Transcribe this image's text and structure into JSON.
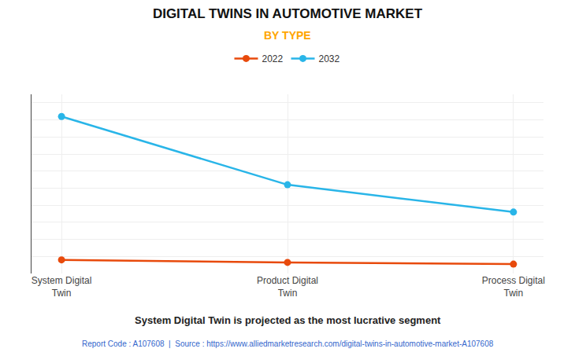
{
  "chart_data": {
    "type": "line",
    "title": "DIGITAL TWINS IN AUTOMOTIVE MARKET",
    "subtitle": "BY TYPE",
    "categories": [
      "System Digital\nTwin",
      "Product Digital\nTwin",
      "Process Digital\nTwin"
    ],
    "series": [
      {
        "name": "2022",
        "color": "#E84A0C",
        "values": [
          0.08,
          0.065,
          0.055
        ]
      },
      {
        "name": "2032",
        "color": "#29B5E8",
        "values": [
          0.92,
          0.52,
          0.36
        ]
      }
    ],
    "ylim": [
      0,
      1.05
    ],
    "yticks": [
      0,
      0.1,
      0.2,
      0.3,
      0.4,
      0.5,
      0.6,
      0.7,
      0.8,
      0.9,
      1
    ],
    "grid": true,
    "tick_labels": "x",
    "marker": "circle",
    "legend": "top",
    "annotations": [
      "System Digital Twin is projected as the most lucrative segment",
      "Report Code : A107608  |  Source : https://www.alliedmarketresearch.com/digital-twins-in-automotive-market-A107608"
    ]
  }
}
